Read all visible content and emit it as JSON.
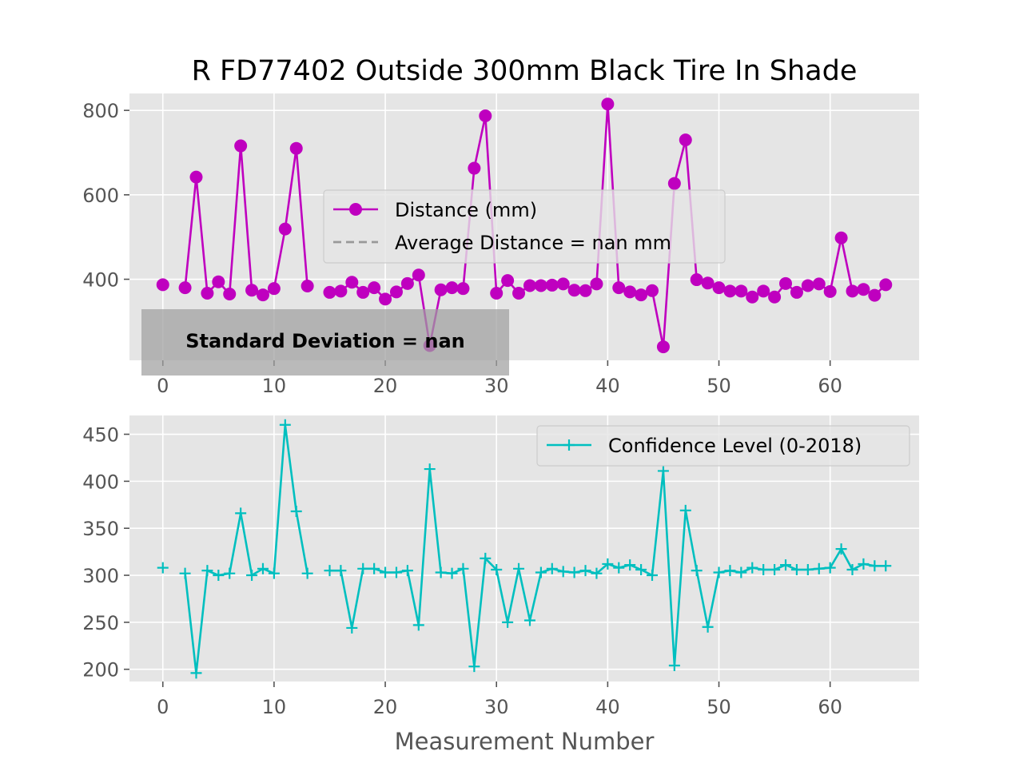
{
  "figure": {
    "title": "R FD77402 Outside 300mm Black Tire In Shade",
    "xlabel": "Measurement Number"
  },
  "chart_data": [
    {
      "type": "line",
      "title": "R FD77402 Outside 300mm Black Tire In Shade",
      "xlabel": "",
      "ylabel": "",
      "xlim": [
        -3,
        68
      ],
      "ylim": [
        208,
        840
      ],
      "xticks": [
        0,
        10,
        20,
        30,
        40,
        50,
        60
      ],
      "yticks": [
        400,
        600,
        800
      ],
      "grid": true,
      "legend_position": "center",
      "series": [
        {
          "name": "Distance (mm)",
          "color": "#bf00bf",
          "marker": "circle",
          "x": [
            0,
            2,
            3,
            4,
            5,
            6,
            7,
            8,
            9,
            10,
            11,
            12,
            13,
            15,
            16,
            17,
            18,
            19,
            20,
            21,
            22,
            23,
            24,
            25,
            26,
            27,
            28,
            29,
            30,
            31,
            32,
            33,
            34,
            35,
            36,
            37,
            38,
            39,
            40,
            41,
            42,
            43,
            44,
            45,
            46,
            47,
            48,
            49,
            50,
            51,
            52,
            53,
            54,
            55,
            56,
            57,
            58,
            59,
            60,
            61,
            62,
            63,
            64,
            65
          ],
          "values": [
            387,
            380,
            642,
            367,
            394,
            365,
            716,
            374,
            363,
            378,
            519,
            710,
            384,
            369,
            372,
            393,
            369,
            380,
            353,
            370,
            390,
            410,
            243,
            375,
            380,
            378,
            663,
            787,
            367,
            397,
            367,
            385,
            385,
            386,
            389,
            374,
            373,
            389,
            815,
            380,
            370,
            363,
            373,
            240,
            627,
            730,
            399,
            391,
            380,
            372,
            372,
            358,
            372,
            358,
            390,
            369,
            385,
            389,
            371,
            498,
            372,
            376,
            362,
            387
          ]
        },
        {
          "name": "Average Distance = nan mm",
          "color": "#999999",
          "line_style": "dashed",
          "x": [],
          "values": []
        }
      ],
      "annotation": "Standard Deviation = nan"
    },
    {
      "type": "line",
      "xlabel": "Measurement Number",
      "ylabel": "",
      "xlim": [
        -3,
        68
      ],
      "ylim": [
        187,
        470
      ],
      "xticks": [
        0,
        10,
        20,
        30,
        40,
        50,
        60
      ],
      "yticks": [
        200,
        250,
        300,
        350,
        400,
        450
      ],
      "grid": true,
      "legend_position": "upper right",
      "series": [
        {
          "name": "Confidence Level (0-2018)",
          "color": "#00bfbf",
          "marker": "plus",
          "x": [
            0,
            2,
            3,
            4,
            5,
            6,
            7,
            8,
            9,
            10,
            11,
            12,
            13,
            15,
            16,
            17,
            18,
            19,
            20,
            21,
            22,
            23,
            24,
            25,
            26,
            27,
            28,
            29,
            30,
            31,
            32,
            33,
            34,
            35,
            36,
            37,
            38,
            39,
            40,
            41,
            42,
            43,
            44,
            45,
            46,
            47,
            48,
            49,
            50,
            51,
            52,
            53,
            54,
            55,
            56,
            57,
            58,
            59,
            60,
            61,
            62,
            63,
            64,
            65
          ],
          "values": [
            308,
            302,
            196,
            305,
            300,
            302,
            366,
            300,
            307,
            302,
            460,
            368,
            302,
            305,
            305,
            244,
            307,
            307,
            303,
            303,
            305,
            247,
            413,
            303,
            302,
            307,
            203,
            318,
            306,
            250,
            307,
            252,
            303,
            307,
            304,
            303,
            305,
            302,
            312,
            308,
            311,
            306,
            300,
            411,
            204,
            369,
            305,
            245,
            303,
            305,
            303,
            308,
            306,
            306,
            311,
            306,
            306,
            307,
            308,
            328,
            306,
            312,
            310,
            310
          ]
        }
      ]
    }
  ]
}
